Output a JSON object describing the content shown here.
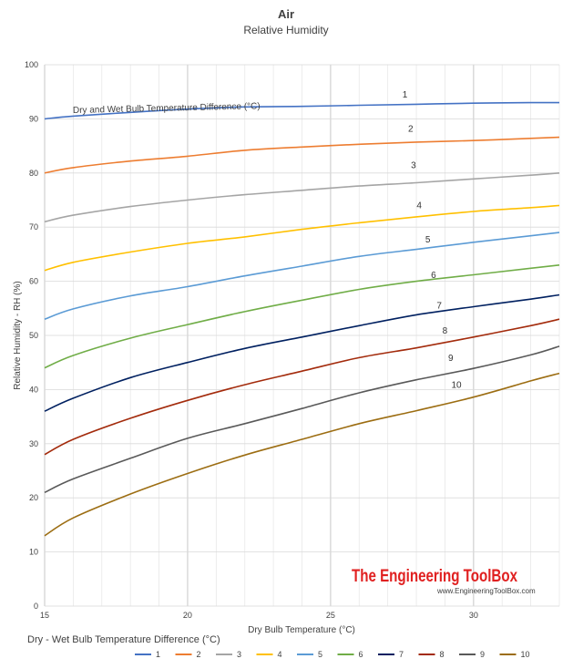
{
  "chart_data": {
    "type": "line",
    "title": "Air",
    "subtitle": "Relative Humidity",
    "xlabel": "Dry Bulb Temperature (°C)",
    "ylabel": "Relative Humidity - RH (%)",
    "xlim": [
      15,
      33
    ],
    "ylim": [
      0,
      100
    ],
    "x_ticks": [
      15,
      20,
      25,
      30
    ],
    "y_ticks": [
      0,
      10,
      20,
      30,
      40,
      50,
      60,
      70,
      80,
      90,
      100
    ],
    "grid": "vertical and horizontal",
    "legend_position": "bottom",
    "legend_title": "Dry - Wet Bulb Temperature Difference (°C)",
    "annotation": "Dry and Wet Bulb Temperature Difference (°C)",
    "watermark": "The Engineering ToolBox",
    "watermark_url": "www.EngineeringToolBox.com",
    "x": [
      15,
      16,
      18,
      20,
      22,
      24,
      26,
      28,
      30,
      32,
      33
    ],
    "series": [
      {
        "name": "1",
        "color": "#4472c4",
        "label_x": 27.6,
        "label_y": 93.9,
        "values": [
          90,
          90.5,
          91.2,
          91.8,
          92.2,
          92.3,
          92.5,
          92.7,
          92.9,
          93,
          93
        ]
      },
      {
        "name": "2",
        "color": "#ed7d31",
        "label_x": 27.8,
        "label_y": 87.6,
        "values": [
          80,
          81,
          82.2,
          83.1,
          84.2,
          84.8,
          85.3,
          85.7,
          86,
          86.4,
          86.6
        ]
      },
      {
        "name": "3",
        "color": "#a5a5a5",
        "label_x": 27.9,
        "label_y": 80.9,
        "values": [
          71,
          72.2,
          73.8,
          75,
          76,
          76.8,
          77.6,
          78.2,
          78.9,
          79.6,
          80
        ]
      },
      {
        "name": "4",
        "color": "#ffc000",
        "label_x": 28.1,
        "label_y": 73.5,
        "values": [
          62,
          63.5,
          65.4,
          67,
          68.2,
          69.6,
          70.8,
          71.9,
          72.9,
          73.6,
          74
        ]
      },
      {
        "name": "5",
        "color": "#5b9bd5",
        "label_x": 28.4,
        "label_y": 67.2,
        "values": [
          53,
          54.9,
          57.3,
          59,
          61,
          62.8,
          64.6,
          65.9,
          67.2,
          68.4,
          69
        ]
      },
      {
        "name": "6",
        "color": "#70ad47",
        "label_x": 28.6,
        "label_y": 60.6,
        "values": [
          44,
          46.3,
          49.5,
          52,
          54.4,
          56.5,
          58.5,
          60,
          61.2,
          62.4,
          63
        ]
      },
      {
        "name": "7",
        "color": "#002060",
        "label_x": 28.8,
        "label_y": 55.0,
        "values": [
          36,
          38.4,
          42.2,
          45,
          47.6,
          49.7,
          51.8,
          53.8,
          55.3,
          56.7,
          57.5
        ]
      },
      {
        "name": "8",
        "color": "#a32b0c",
        "label_x": 29.0,
        "label_y": 50.3,
        "values": [
          28,
          30.8,
          34.7,
          38,
          40.9,
          43.4,
          45.9,
          47.7,
          49.7,
          51.8,
          53
        ]
      },
      {
        "name": "9",
        "color": "#595959",
        "label_x": 29.2,
        "label_y": 45.3,
        "values": [
          21,
          23.5,
          27.3,
          31,
          33.7,
          36.5,
          39.4,
          41.8,
          43.9,
          46.4,
          48
        ]
      },
      {
        "name": "10",
        "color": "#9c6d12",
        "label_x": 29.4,
        "label_y": 40.3,
        "values": [
          13,
          16.3,
          20.7,
          24.5,
          27.9,
          30.8,
          33.7,
          36.1,
          38.6,
          41.6,
          43
        ]
      }
    ]
  }
}
